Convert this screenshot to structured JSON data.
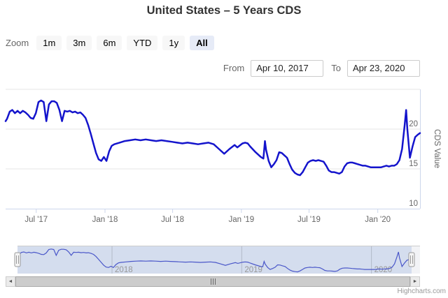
{
  "header": {
    "title": "United States – 5 Years CDS"
  },
  "zoom_bar": {
    "label": "Zoom",
    "buttons": [
      {
        "label": "1m",
        "active": false
      },
      {
        "label": "3m",
        "active": false
      },
      {
        "label": "6m",
        "active": false
      },
      {
        "label": "YTD",
        "active": false
      },
      {
        "label": "1y",
        "active": false
      },
      {
        "label": "All",
        "active": true
      }
    ]
  },
  "range": {
    "from_label": "From",
    "from_value": "Apr 10, 2017",
    "to_label": "To",
    "to_value": "Apr 23, 2020"
  },
  "chart_data": {
    "type": "line",
    "title": "United States – 5 Years CDS",
    "xlabel": "",
    "ylabel": "CDS Value",
    "x_range": [
      "2017-04-10",
      "2020-04-23"
    ],
    "ylim": [
      10,
      25
    ],
    "grid": true,
    "legend": false,
    "y_axis": {
      "gridline_values": [
        25,
        20,
        15
      ],
      "labels": [
        {
          "value": 20,
          "text": "20"
        },
        {
          "value": 15,
          "text": "15"
        },
        {
          "value": 10,
          "text": "10"
        }
      ]
    },
    "x_ticks": [
      {
        "date": "2017-07-01",
        "label": "Jul '17"
      },
      {
        "date": "2018-01-01",
        "label": "Jan '18"
      },
      {
        "date": "2018-07-01",
        "label": "Jul '18"
      },
      {
        "date": "2019-01-01",
        "label": "Jan '19"
      },
      {
        "date": "2019-07-01",
        "label": "Jul '19"
      },
      {
        "date": "2020-01-01",
        "label": "Jan '20"
      }
    ],
    "series": [
      {
        "name": "CDS Value",
        "color": "#1414cc",
        "data": [
          [
            "2017-04-10",
            21.0
          ],
          [
            "2017-04-14",
            21.3
          ],
          [
            "2017-04-21",
            22.2
          ],
          [
            "2017-04-28",
            22.4
          ],
          [
            "2017-05-05",
            22.0
          ],
          [
            "2017-05-12",
            22.3
          ],
          [
            "2017-05-19",
            22.0
          ],
          [
            "2017-05-26",
            22.3
          ],
          [
            "2017-06-02",
            22.1
          ],
          [
            "2017-06-09",
            21.8
          ],
          [
            "2017-06-16",
            21.4
          ],
          [
            "2017-06-23",
            21.3
          ],
          [
            "2017-06-30",
            22.0
          ],
          [
            "2017-07-07",
            23.4
          ],
          [
            "2017-07-14",
            23.6
          ],
          [
            "2017-07-21",
            23.4
          ],
          [
            "2017-07-28",
            21.0
          ],
          [
            "2017-08-04",
            23.1
          ],
          [
            "2017-08-11",
            23.5
          ],
          [
            "2017-08-18",
            23.5
          ],
          [
            "2017-08-25",
            23.3
          ],
          [
            "2017-09-01",
            22.4
          ],
          [
            "2017-09-08",
            21.0
          ],
          [
            "2017-09-15",
            22.3
          ],
          [
            "2017-09-22",
            22.2
          ],
          [
            "2017-09-29",
            22.3
          ],
          [
            "2017-10-06",
            22.1
          ],
          [
            "2017-10-13",
            22.2
          ],
          [
            "2017-10-20",
            22.0
          ],
          [
            "2017-10-27",
            22.1
          ],
          [
            "2017-11-03",
            21.8
          ],
          [
            "2017-11-10",
            21.4
          ],
          [
            "2017-11-17",
            20.5
          ],
          [
            "2017-11-24",
            19.4
          ],
          [
            "2017-12-01",
            18.2
          ],
          [
            "2017-12-08",
            17.0
          ],
          [
            "2017-12-15",
            16.2
          ],
          [
            "2017-12-22",
            16.0
          ],
          [
            "2017-12-29",
            16.5
          ],
          [
            "2018-01-05",
            16.0
          ],
          [
            "2018-01-12",
            17.2
          ],
          [
            "2018-01-19",
            17.9
          ],
          [
            "2018-01-26",
            18.1
          ],
          [
            "2018-02-09",
            18.3
          ],
          [
            "2018-02-23",
            18.5
          ],
          [
            "2018-03-09",
            18.6
          ],
          [
            "2018-03-23",
            18.7
          ],
          [
            "2018-04-06",
            18.6
          ],
          [
            "2018-04-20",
            18.7
          ],
          [
            "2018-05-04",
            18.6
          ],
          [
            "2018-05-18",
            18.5
          ],
          [
            "2018-06-01",
            18.6
          ],
          [
            "2018-06-15",
            18.5
          ],
          [
            "2018-06-29",
            18.4
          ],
          [
            "2018-07-13",
            18.3
          ],
          [
            "2018-07-27",
            18.2
          ],
          [
            "2018-08-10",
            18.3
          ],
          [
            "2018-08-24",
            18.2
          ],
          [
            "2018-09-07",
            18.1
          ],
          [
            "2018-09-21",
            18.2
          ],
          [
            "2018-10-05",
            18.3
          ],
          [
            "2018-10-19",
            18.1
          ],
          [
            "2018-11-02",
            17.5
          ],
          [
            "2018-11-16",
            16.9
          ],
          [
            "2018-11-30",
            17.5
          ],
          [
            "2018-12-14",
            18.0
          ],
          [
            "2018-12-21",
            17.7
          ],
          [
            "2019-01-04",
            18.2
          ],
          [
            "2019-01-11",
            18.3
          ],
          [
            "2019-01-18",
            18.2
          ],
          [
            "2019-01-25",
            17.8
          ],
          [
            "2019-02-08",
            17.1
          ],
          [
            "2019-02-22",
            16.5
          ],
          [
            "2019-03-01",
            16.3
          ],
          [
            "2019-03-05",
            18.5
          ],
          [
            "2019-03-08",
            17.4
          ],
          [
            "2019-03-15",
            16.0
          ],
          [
            "2019-03-22",
            15.2
          ],
          [
            "2019-03-29",
            15.6
          ],
          [
            "2019-04-05",
            16.1
          ],
          [
            "2019-04-12",
            17.1
          ],
          [
            "2019-04-19",
            17.0
          ],
          [
            "2019-04-26",
            16.7
          ],
          [
            "2019-05-03",
            16.4
          ],
          [
            "2019-05-10",
            15.6
          ],
          [
            "2019-05-17",
            14.9
          ],
          [
            "2019-05-24",
            14.5
          ],
          [
            "2019-05-31",
            14.3
          ],
          [
            "2019-06-07",
            14.2
          ],
          [
            "2019-06-14",
            14.6
          ],
          [
            "2019-06-21",
            15.2
          ],
          [
            "2019-06-28",
            15.8
          ],
          [
            "2019-07-05",
            16.0
          ],
          [
            "2019-07-12",
            16.1
          ],
          [
            "2019-07-19",
            16.0
          ],
          [
            "2019-07-26",
            16.1
          ],
          [
            "2019-08-02",
            16.0
          ],
          [
            "2019-08-09",
            15.9
          ],
          [
            "2019-08-16",
            15.4
          ],
          [
            "2019-08-23",
            14.8
          ],
          [
            "2019-08-30",
            14.6
          ],
          [
            "2019-09-06",
            14.6
          ],
          [
            "2019-09-13",
            14.5
          ],
          [
            "2019-09-20",
            14.4
          ],
          [
            "2019-09-27",
            14.6
          ],
          [
            "2019-10-04",
            15.3
          ],
          [
            "2019-10-11",
            15.7
          ],
          [
            "2019-10-18",
            15.8
          ],
          [
            "2019-10-25",
            15.8
          ],
          [
            "2019-11-01",
            15.7
          ],
          [
            "2019-11-08",
            15.6
          ],
          [
            "2019-11-15",
            15.5
          ],
          [
            "2019-11-22",
            15.4
          ],
          [
            "2019-11-29",
            15.4
          ],
          [
            "2019-12-06",
            15.3
          ],
          [
            "2019-12-13",
            15.2
          ],
          [
            "2019-12-20",
            15.2
          ],
          [
            "2019-12-27",
            15.2
          ],
          [
            "2020-01-03",
            15.2
          ],
          [
            "2020-01-10",
            15.2
          ],
          [
            "2020-01-17",
            15.3
          ],
          [
            "2020-01-24",
            15.4
          ],
          [
            "2020-01-31",
            15.3
          ],
          [
            "2020-02-07",
            15.4
          ],
          [
            "2020-02-14",
            15.4
          ],
          [
            "2020-02-21",
            15.6
          ],
          [
            "2020-02-28",
            16.1
          ],
          [
            "2020-03-06",
            17.5
          ],
          [
            "2020-03-13",
            20.5
          ],
          [
            "2020-03-17",
            22.4
          ],
          [
            "2020-03-20",
            20.0
          ],
          [
            "2020-03-27",
            16.4
          ],
          [
            "2020-04-03",
            17.8
          ],
          [
            "2020-04-10",
            19.0
          ],
          [
            "2020-04-17",
            19.3
          ],
          [
            "2020-04-23",
            19.5
          ]
        ]
      }
    ],
    "navigator": {
      "color": "#4a57c9",
      "mask_color": "rgba(102,133,194,0.28)",
      "year_ticks": [
        {
          "date": "2018-01-01",
          "label": "2018"
        },
        {
          "date": "2019-01-01",
          "label": "2019"
        },
        {
          "date": "2020-01-01",
          "label": "2020"
        }
      ]
    }
  },
  "scrollbar": {
    "left_arrow_icon": "◄",
    "right_arrow_icon": "►"
  },
  "credits": {
    "label": "Highcharts.com"
  }
}
